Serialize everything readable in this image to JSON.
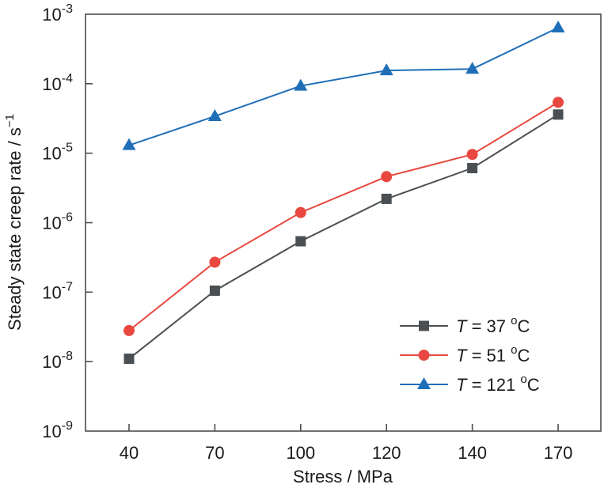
{
  "chart_data": {
    "type": "line",
    "title": "",
    "xlabel": "Stress / MPa",
    "ylabel": "Steady state creep rate / s",
    "ylabel_superscript": "−1",
    "x_scale": "categorical",
    "y_scale": "log",
    "categories": [
      "40",
      "70",
      "100",
      "120",
      "140",
      "170"
    ],
    "ylim": [
      1e-09,
      0.001
    ],
    "y_ticks": [
      {
        "value": 0.001,
        "base": "10",
        "exp": "-3"
      },
      {
        "value": 0.0001,
        "base": "10",
        "exp": "-4"
      },
      {
        "value": 1e-05,
        "base": "10",
        "exp": "-5"
      },
      {
        "value": 1e-06,
        "base": "10",
        "exp": "-6"
      },
      {
        "value": 1e-07,
        "base": "10",
        "exp": "-7"
      },
      {
        "value": 1e-08,
        "base": "10",
        "exp": "-8"
      },
      {
        "value": 1e-09,
        "base": "10",
        "exp": "-9"
      }
    ],
    "grid": false,
    "legend_position": "bottom-right",
    "series": [
      {
        "name": "T = 37 oC",
        "legend_var": "T",
        "legend_eq": " = 37 ",
        "legend_deg": "o",
        "legend_unit": "C",
        "marker": "square",
        "color": "#4a4f53",
        "values": [
          1.1e-08,
          1.05e-07,
          5.4e-07,
          2.2e-06,
          6.1e-06,
          3.6e-05
        ]
      },
      {
        "name": "T = 51 oC",
        "legend_var": "T",
        "legend_eq": " = 51 ",
        "legend_deg": "o",
        "legend_unit": "C",
        "marker": "circle",
        "color": "#e8483f",
        "values": [
          2.8e-08,
          2.7e-07,
          1.4e-06,
          4.6e-06,
          9.6e-06,
          5.4e-05
        ]
      },
      {
        "name": "T = 121 oC",
        "legend_var": "T",
        "legend_eq": " = 121 ",
        "legend_deg": "o",
        "legend_unit": "C",
        "marker": "triangle",
        "color": "#1f6fb8",
        "values": [
          1.3e-05,
          3.4e-05,
          9.3e-05,
          0.000155,
          0.000163,
          0.00064
        ]
      }
    ]
  }
}
